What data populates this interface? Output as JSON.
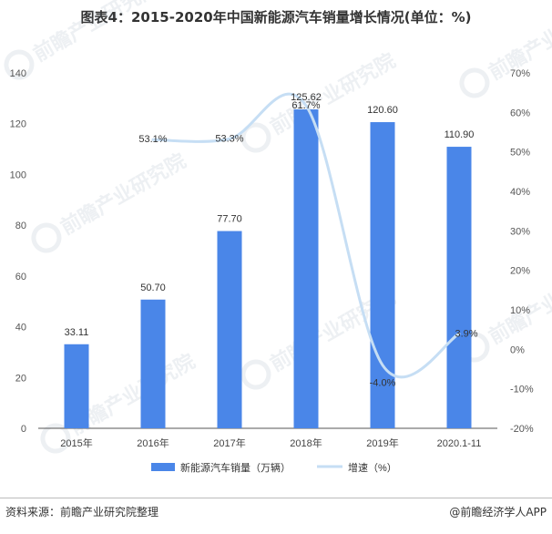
{
  "title": "图表4：2015-2020年中国新能源汽车销量增长情况(单位：%)",
  "source": "资料来源：前瞻产业研究院整理",
  "credit": "@前瞻经济学人APP",
  "watermark": "前瞻产业研究院",
  "colors": {
    "bar": "#4a86e8",
    "line": "#c6def4",
    "axis": "#555555",
    "grid": "#d9d9d9"
  },
  "chart_data": {
    "type": "bar",
    "categories": [
      "2015年",
      "2016年",
      "2017年",
      "2018年",
      "2019年",
      "2020.1-11"
    ],
    "series": [
      {
        "name": "新能源汽车销量（万辆）",
        "type": "bar",
        "axis": "left",
        "values": [
          33.11,
          50.7,
          77.7,
          125.62,
          120.6,
          110.9
        ],
        "labels": [
          "33.11",
          "50.70",
          "77.70",
          "125.62",
          "120.60",
          "110.90"
        ]
      },
      {
        "name": "增速（%）",
        "type": "line",
        "axis": "right",
        "values": [
          null,
          53.1,
          53.3,
          61.7,
          -4.0,
          3.9
        ],
        "labels": [
          "",
          "53.1%",
          "53.3%",
          "61.7%",
          "-4.0%",
          "3.9%"
        ]
      }
    ],
    "y_left": {
      "min": 0,
      "max": 140,
      "ticks": [
        "0",
        "20",
        "40",
        "60",
        "80",
        "100",
        "120",
        "140"
      ]
    },
    "y_right": {
      "min": -20,
      "max": 70,
      "ticks": [
        "-20%",
        "-10%",
        "0%",
        "10%",
        "20%",
        "30%",
        "40%",
        "50%",
        "60%",
        "70%"
      ]
    },
    "grid": false,
    "legend": "bottom"
  }
}
